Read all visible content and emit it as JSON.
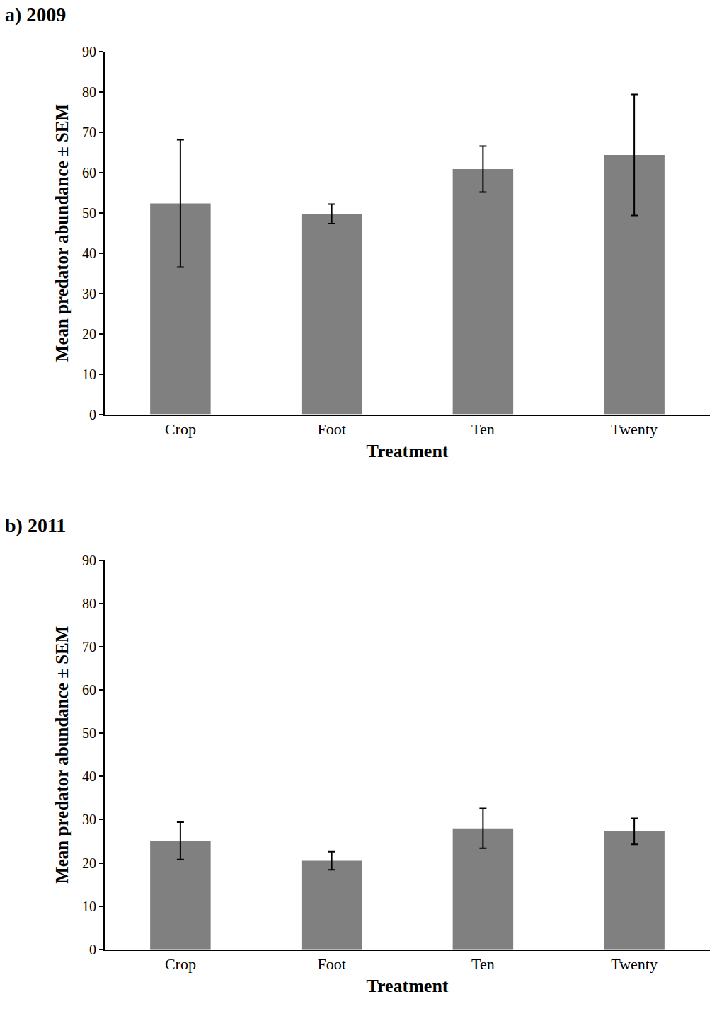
{
  "chart_data": [
    {
      "type": "bar",
      "title": "a) 2009",
      "x_label": "Treatment",
      "y_label": "Mean predator abundance ± SEM",
      "categories": [
        "Crop",
        "Foot",
        "Ten",
        "Twenty"
      ],
      "values": [
        52.3,
        49.7,
        60.8,
        64.3
      ],
      "error": [
        15.8,
        2.4,
        5.7,
        15.0
      ],
      "color": "#808080",
      "ylim": [
        0,
        90
      ],
      "yticks": [
        0,
        10,
        20,
        30,
        40,
        50,
        60,
        70,
        80,
        90
      ],
      "grid": false
    },
    {
      "type": "bar",
      "title": "b) 2011",
      "x_label": "Treatment",
      "y_label": "Mean predator abundance ± SEM",
      "categories": [
        "Crop",
        "Foot",
        "Ten",
        "Twenty"
      ],
      "values": [
        25.1,
        20.5,
        28.0,
        27.3
      ],
      "error": [
        4.3,
        2.1,
        4.6,
        3.0
      ],
      "color": "#808080",
      "ylim": [
        0,
        90
      ],
      "yticks": [
        0,
        10,
        20,
        30,
        40,
        50,
        60,
        70,
        80,
        90
      ],
      "grid": false
    }
  ]
}
